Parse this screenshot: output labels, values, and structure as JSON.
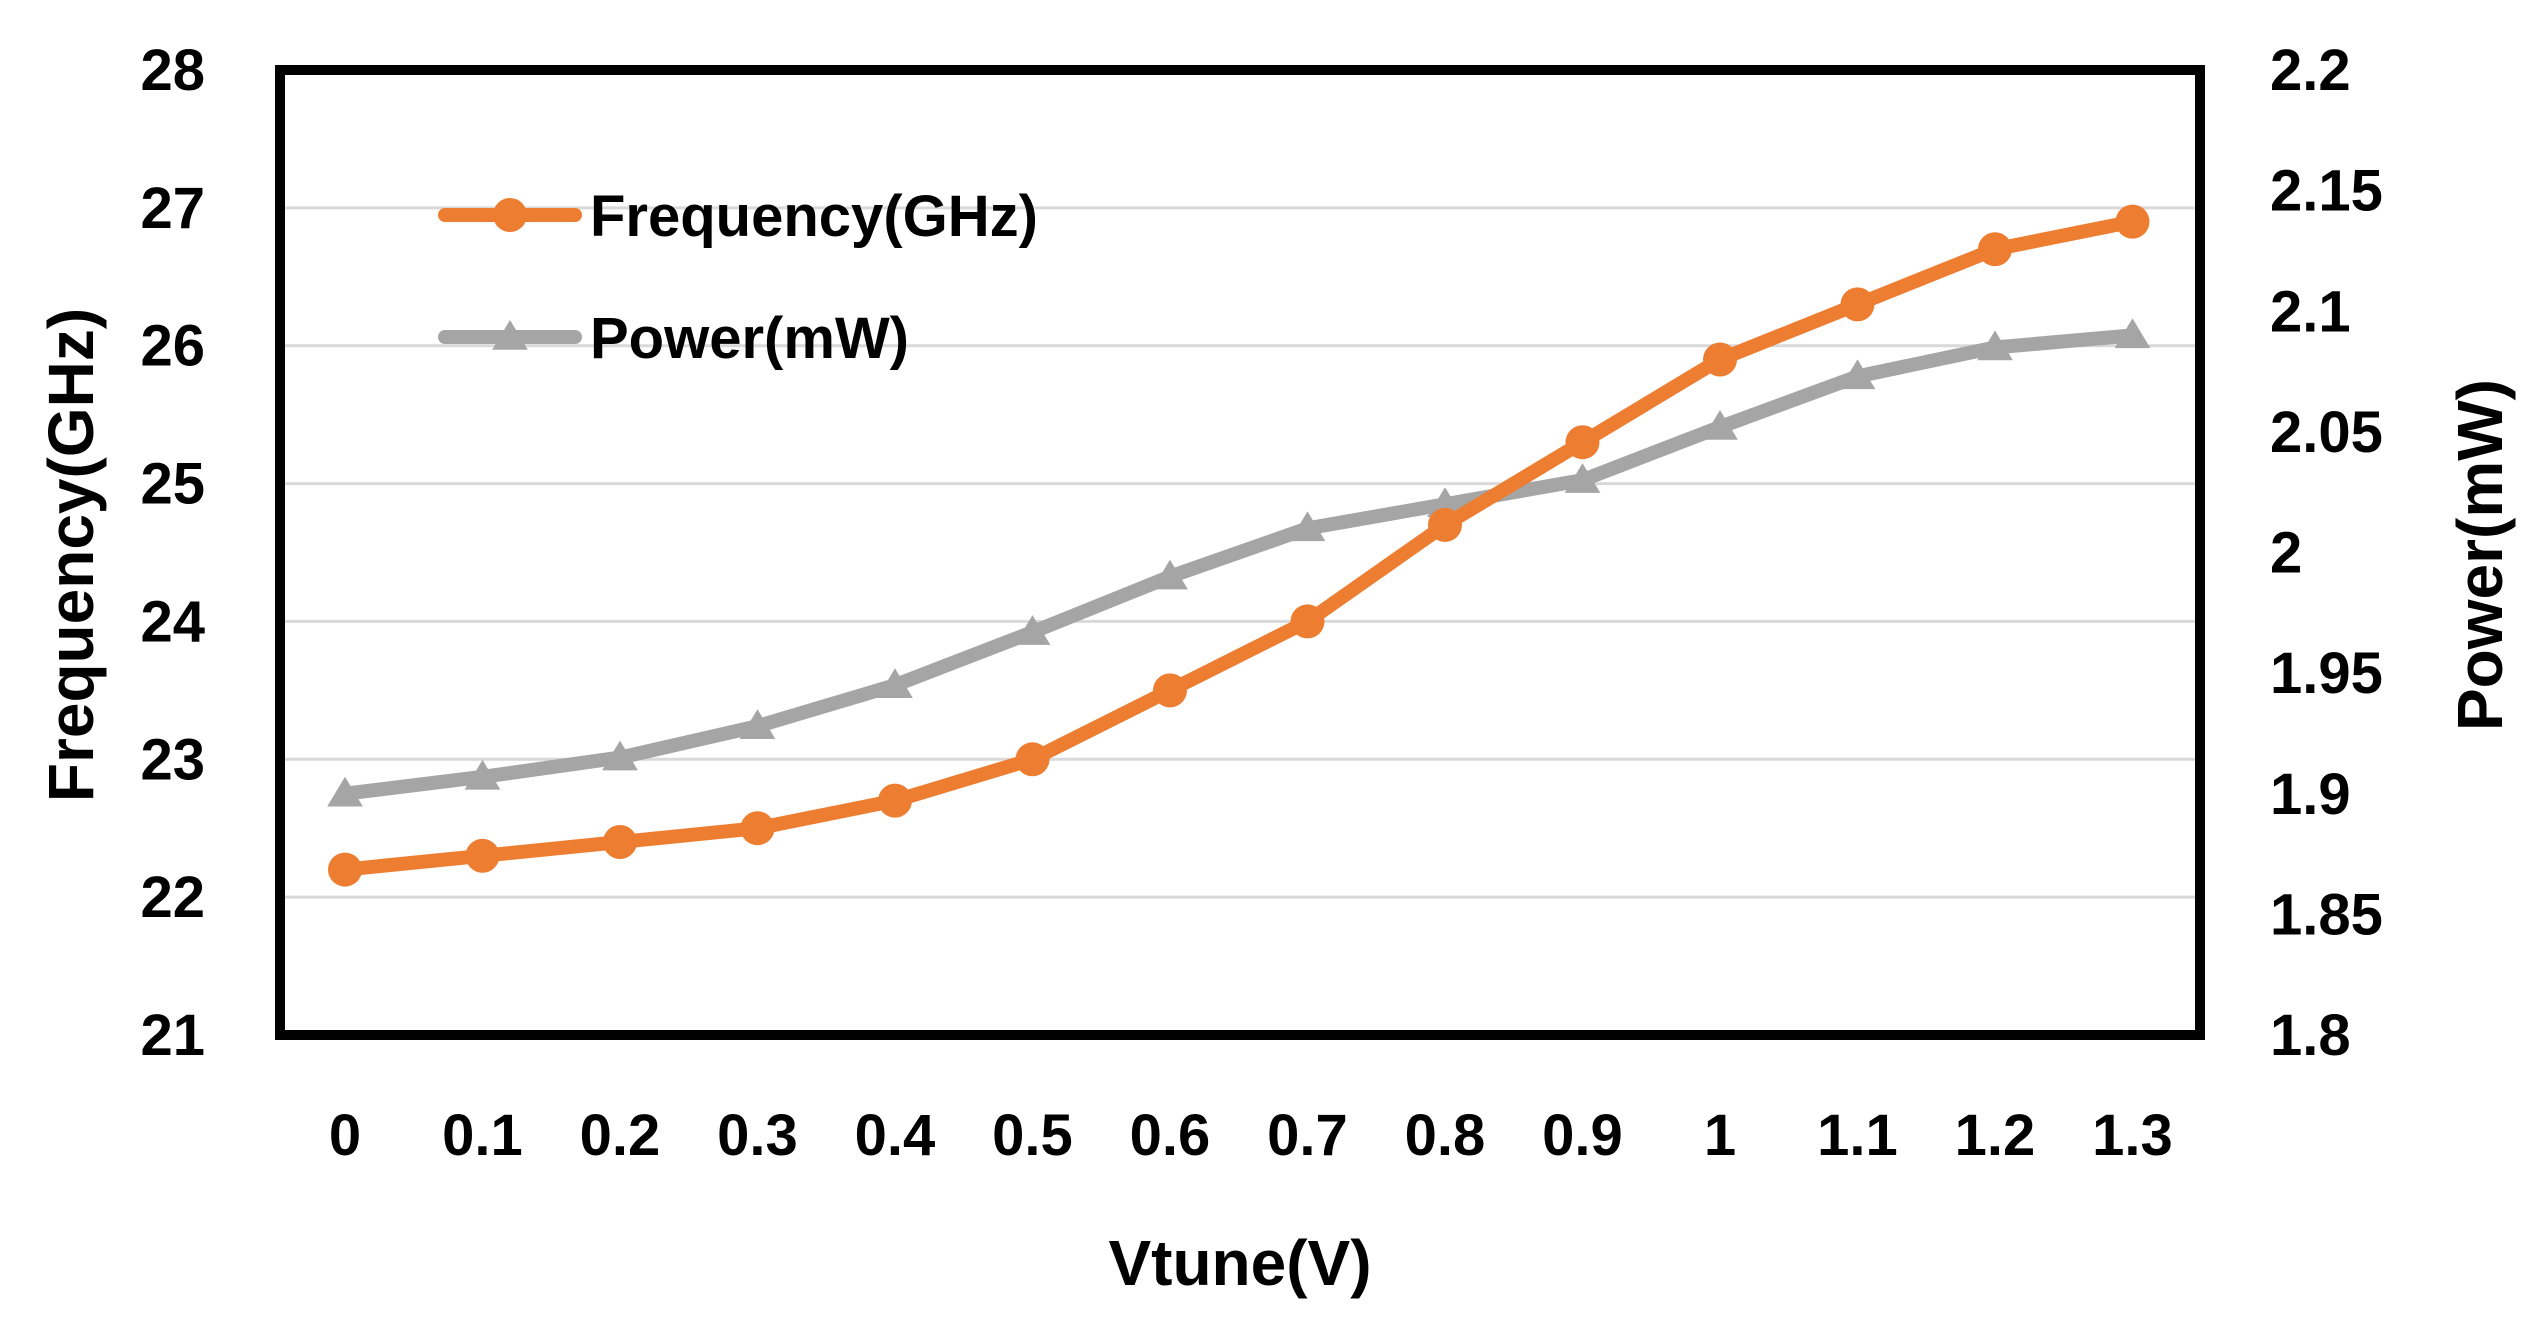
{
  "chart_data": {
    "type": "line",
    "title": "",
    "xlabel": "Vtune(V)",
    "ylabel": "Frequency(GHz)",
    "y2label": "Power(mW)",
    "x": [
      "0",
      "0.1",
      "0.2",
      "0.3",
      "0.4",
      "0.5",
      "0.6",
      "0.7",
      "0.8",
      "0.9",
      "1",
      "1.1",
      "1.2",
      "1.3"
    ],
    "ylim": [
      21,
      28
    ],
    "y2lim": [
      1.8,
      2.2
    ],
    "y_ticks": [
      "21",
      "22",
      "23",
      "24",
      "25",
      "26",
      "27",
      "28"
    ],
    "y2_ticks": [
      "1.8",
      "1.85",
      "1.9",
      "1.95",
      "2",
      "2.05",
      "2.1",
      "2.15",
      "2.2"
    ],
    "grid": true,
    "legend_position": "top-left",
    "series": [
      {
        "name": "Frequency(GHz)",
        "axis": "left",
        "marker": "circle",
        "color": "#ED7D31",
        "values": [
          22.2,
          22.3,
          22.4,
          22.5,
          22.7,
          23.0,
          23.5,
          24.0,
          24.7,
          25.3,
          25.9,
          26.3,
          26.7,
          26.9
        ]
      },
      {
        "name": "Power(mW)",
        "axis": "right",
        "marker": "triangle",
        "color": "#A5A5A5",
        "values": [
          1.9,
          1.907,
          1.915,
          1.928,
          1.945,
          1.967,
          1.99,
          2.01,
          2.02,
          2.03,
          2.052,
          2.073,
          2.085,
          2.09
        ]
      }
    ]
  }
}
